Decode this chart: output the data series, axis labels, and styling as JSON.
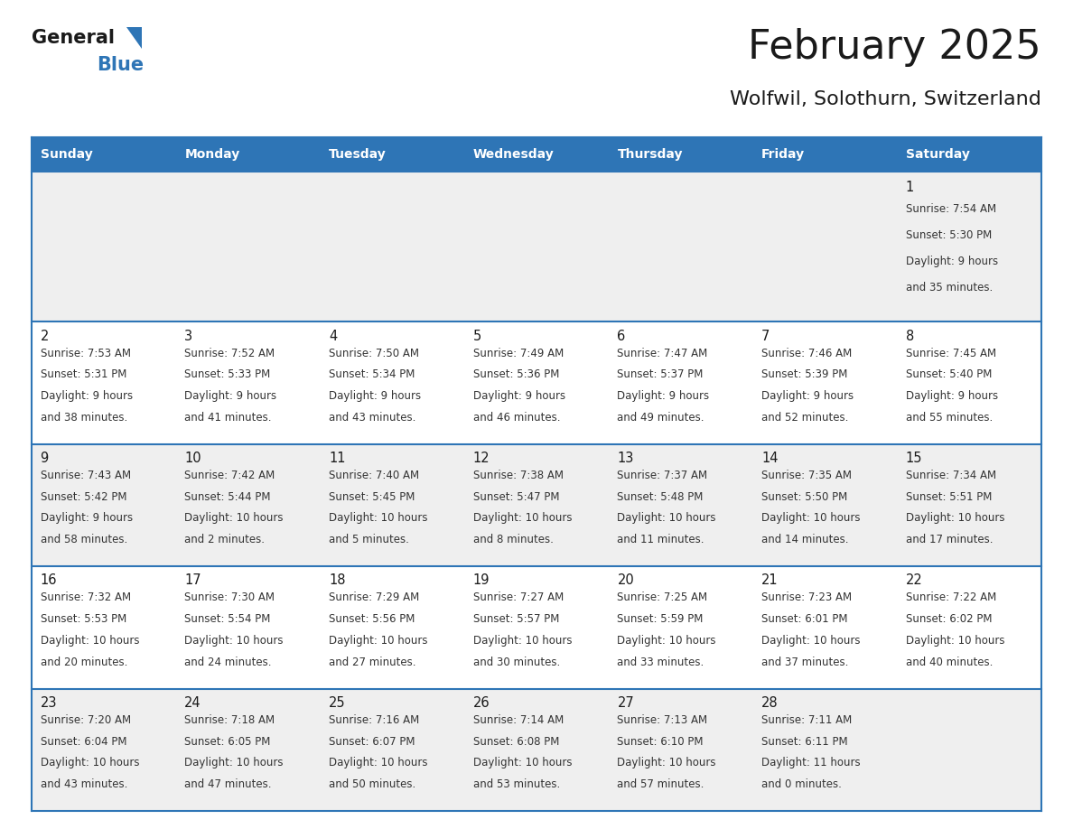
{
  "title": "February 2025",
  "subtitle": "Wolfwil, Solothurn, Switzerland",
  "days_of_week": [
    "Sunday",
    "Monday",
    "Tuesday",
    "Wednesday",
    "Thursday",
    "Friday",
    "Saturday"
  ],
  "header_bg": "#2E75B6",
  "header_text": "#FFFFFF",
  "row_bg_light": "#EFEFEF",
  "row_bg_white": "#FFFFFF",
  "cell_text_color": "#333333",
  "day_num_color": "#1A1A1A",
  "separator_color": "#2E75B6",
  "title_color": "#1A1A1A",
  "subtitle_color": "#1A1A1A",
  "logo_general_color": "#1A1A1A",
  "logo_blue_color": "#2E75B6",
  "calendar_data": [
    [
      null,
      null,
      null,
      null,
      null,
      null,
      {
        "day": 1,
        "sunrise": "7:54 AM",
        "sunset": "5:30 PM",
        "daylight": "9 hours",
        "daylight2": "and 35 minutes."
      }
    ],
    [
      {
        "day": 2,
        "sunrise": "7:53 AM",
        "sunset": "5:31 PM",
        "daylight": "9 hours",
        "daylight2": "and 38 minutes."
      },
      {
        "day": 3,
        "sunrise": "7:52 AM",
        "sunset": "5:33 PM",
        "daylight": "9 hours",
        "daylight2": "and 41 minutes."
      },
      {
        "day": 4,
        "sunrise": "7:50 AM",
        "sunset": "5:34 PM",
        "daylight": "9 hours",
        "daylight2": "and 43 minutes."
      },
      {
        "day": 5,
        "sunrise": "7:49 AM",
        "sunset": "5:36 PM",
        "daylight": "9 hours",
        "daylight2": "and 46 minutes."
      },
      {
        "day": 6,
        "sunrise": "7:47 AM",
        "sunset": "5:37 PM",
        "daylight": "9 hours",
        "daylight2": "and 49 minutes."
      },
      {
        "day": 7,
        "sunrise": "7:46 AM",
        "sunset": "5:39 PM",
        "daylight": "9 hours",
        "daylight2": "and 52 minutes."
      },
      {
        "day": 8,
        "sunrise": "7:45 AM",
        "sunset": "5:40 PM",
        "daylight": "9 hours",
        "daylight2": "and 55 minutes."
      }
    ],
    [
      {
        "day": 9,
        "sunrise": "7:43 AM",
        "sunset": "5:42 PM",
        "daylight": "9 hours",
        "daylight2": "and 58 minutes."
      },
      {
        "day": 10,
        "sunrise": "7:42 AM",
        "sunset": "5:44 PM",
        "daylight": "10 hours",
        "daylight2": "and 2 minutes."
      },
      {
        "day": 11,
        "sunrise": "7:40 AM",
        "sunset": "5:45 PM",
        "daylight": "10 hours",
        "daylight2": "and 5 minutes."
      },
      {
        "day": 12,
        "sunrise": "7:38 AM",
        "sunset": "5:47 PM",
        "daylight": "10 hours",
        "daylight2": "and 8 minutes."
      },
      {
        "day": 13,
        "sunrise": "7:37 AM",
        "sunset": "5:48 PM",
        "daylight": "10 hours",
        "daylight2": "and 11 minutes."
      },
      {
        "day": 14,
        "sunrise": "7:35 AM",
        "sunset": "5:50 PM",
        "daylight": "10 hours",
        "daylight2": "and 14 minutes."
      },
      {
        "day": 15,
        "sunrise": "7:34 AM",
        "sunset": "5:51 PM",
        "daylight": "10 hours",
        "daylight2": "and 17 minutes."
      }
    ],
    [
      {
        "day": 16,
        "sunrise": "7:32 AM",
        "sunset": "5:53 PM",
        "daylight": "10 hours",
        "daylight2": "and 20 minutes."
      },
      {
        "day": 17,
        "sunrise": "7:30 AM",
        "sunset": "5:54 PM",
        "daylight": "10 hours",
        "daylight2": "and 24 minutes."
      },
      {
        "day": 18,
        "sunrise": "7:29 AM",
        "sunset": "5:56 PM",
        "daylight": "10 hours",
        "daylight2": "and 27 minutes."
      },
      {
        "day": 19,
        "sunrise": "7:27 AM",
        "sunset": "5:57 PM",
        "daylight": "10 hours",
        "daylight2": "and 30 minutes."
      },
      {
        "day": 20,
        "sunrise": "7:25 AM",
        "sunset": "5:59 PM",
        "daylight": "10 hours",
        "daylight2": "and 33 minutes."
      },
      {
        "day": 21,
        "sunrise": "7:23 AM",
        "sunset": "6:01 PM",
        "daylight": "10 hours",
        "daylight2": "and 37 minutes."
      },
      {
        "day": 22,
        "sunrise": "7:22 AM",
        "sunset": "6:02 PM",
        "daylight": "10 hours",
        "daylight2": "and 40 minutes."
      }
    ],
    [
      {
        "day": 23,
        "sunrise": "7:20 AM",
        "sunset": "6:04 PM",
        "daylight": "10 hours",
        "daylight2": "and 43 minutes."
      },
      {
        "day": 24,
        "sunrise": "7:18 AM",
        "sunset": "6:05 PM",
        "daylight": "10 hours",
        "daylight2": "and 47 minutes."
      },
      {
        "day": 25,
        "sunrise": "7:16 AM",
        "sunset": "6:07 PM",
        "daylight": "10 hours",
        "daylight2": "and 50 minutes."
      },
      {
        "day": 26,
        "sunrise": "7:14 AM",
        "sunset": "6:08 PM",
        "daylight": "10 hours",
        "daylight2": "and 53 minutes."
      },
      {
        "day": 27,
        "sunrise": "7:13 AM",
        "sunset": "6:10 PM",
        "daylight": "10 hours",
        "daylight2": "and 57 minutes."
      },
      {
        "day": 28,
        "sunrise": "7:11 AM",
        "sunset": "6:11 PM",
        "daylight": "11 hours",
        "daylight2": "and 0 minutes."
      },
      null
    ]
  ]
}
